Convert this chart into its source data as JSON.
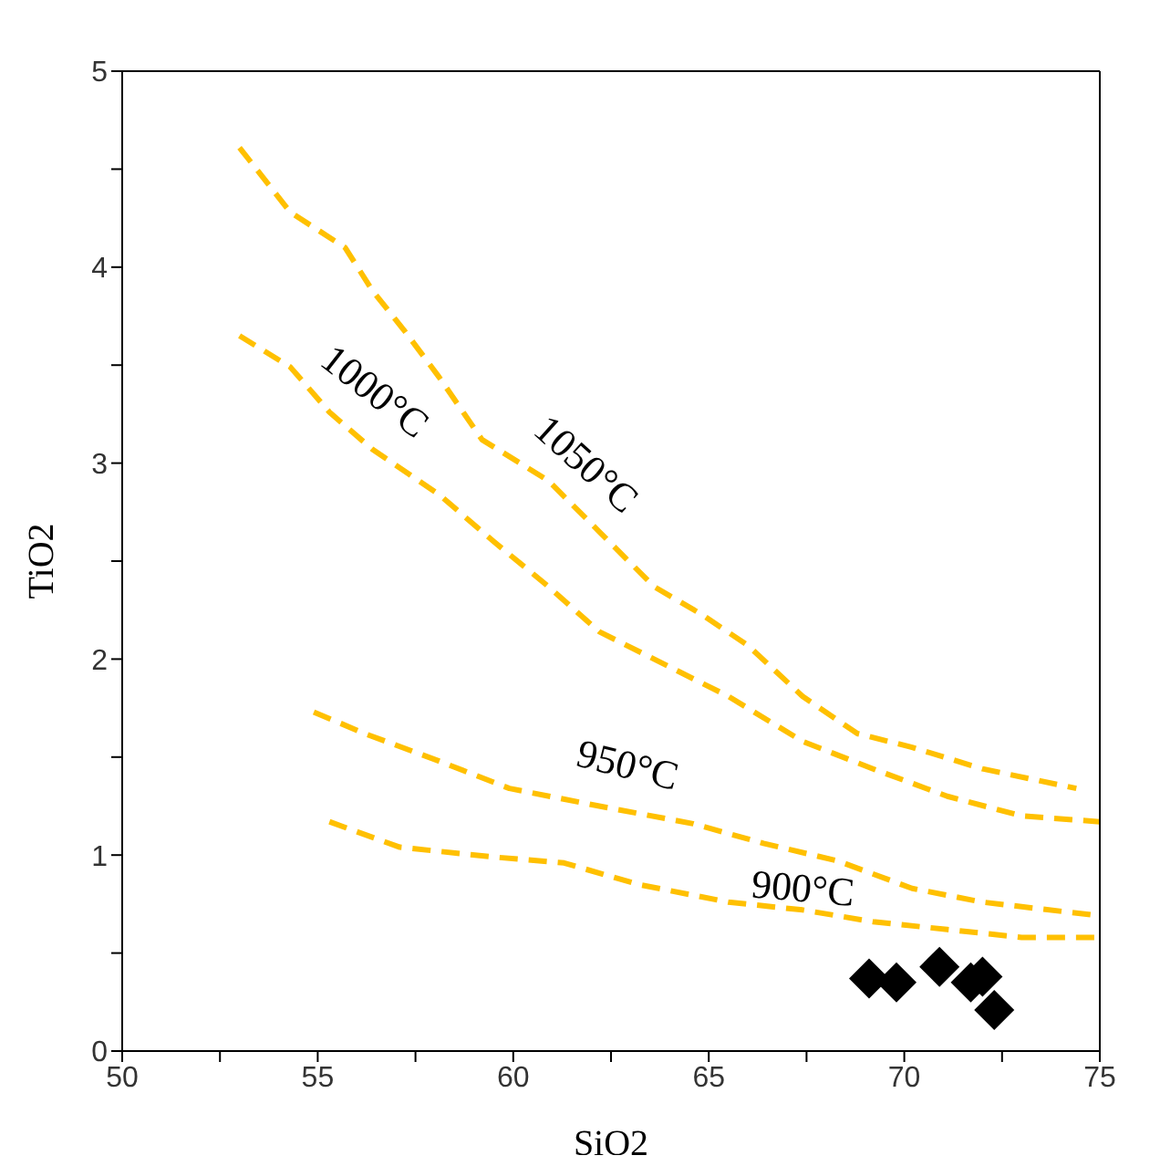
{
  "chart_data": {
    "type": "line",
    "xlabel": "SiO2",
    "ylabel": "TiO2",
    "xlim": [
      50,
      75
    ],
    "ylim": [
      0,
      5
    ],
    "xticks": [
      50,
      {
        "value": 52.5,
        "label": null
      },
      55,
      {
        "value": 57.5,
        "label": null
      },
      60,
      {
        "value": 62.5,
        "label": null
      },
      65,
      {
        "value": 67.5,
        "label": null
      },
      70,
      {
        "value": 72.5,
        "label": null
      },
      75
    ],
    "yticks": [
      0,
      {
        "value": 0.5,
        "label": null
      },
      1,
      {
        "value": 1.5,
        "label": null
      },
      2,
      {
        "value": 2.5,
        "label": null
      },
      3,
      {
        "value": 3.5,
        "label": null
      },
      4,
      {
        "value": 4.5,
        "label": null
      },
      5
    ],
    "grid": false,
    "series": [
      {
        "color": "#ffc000",
        "line_style": "dashed",
        "marker": "none",
        "x": [
          53.0,
          54.3,
          55.7,
          56.4,
          57.2,
          58.1,
          59.2,
          60.9,
          62.2,
          63.6,
          64.8,
          66.0,
          67.4,
          68.8,
          70.2,
          72.0,
          74.4
        ],
        "values": [
          4.61,
          4.28,
          4.1,
          3.88,
          3.68,
          3.44,
          3.12,
          2.91,
          2.65,
          2.37,
          2.23,
          2.07,
          1.81,
          1.62,
          1.55,
          1.44,
          1.34
        ]
      },
      {
        "color": "#ffc000",
        "line_style": "dashed",
        "marker": "none",
        "x": [
          53.0,
          54.3,
          55.3,
          56.4,
          58.1,
          59.5,
          60.9,
          62.2,
          63.6,
          65.5,
          67.4,
          69.2,
          71.1,
          73.0,
          75.0
        ],
        "values": [
          3.65,
          3.49,
          3.26,
          3.07,
          2.84,
          2.6,
          2.37,
          2.14,
          2.0,
          1.81,
          1.58,
          1.44,
          1.3,
          1.2,
          1.17
        ]
      },
      {
        "color": "#ffc000",
        "line_style": "dashed",
        "marker": "none",
        "x": [
          54.9,
          56.2,
          58.1,
          59.9,
          62.2,
          64.6,
          66.4,
          68.3,
          70.2,
          72.0,
          75.0
        ],
        "values": [
          1.73,
          1.62,
          1.48,
          1.34,
          1.25,
          1.16,
          1.06,
          0.97,
          0.83,
          0.76,
          0.69
        ]
      },
      {
        "color": "#ffc000",
        "line_style": "dashed",
        "marker": "none",
        "x": [
          55.3,
          57.1,
          59.5,
          61.3,
          63.2,
          65.5,
          67.4,
          69.2,
          71.1,
          73.0,
          75.0
        ],
        "values": [
          1.17,
          1.04,
          0.99,
          0.96,
          0.85,
          0.76,
          0.72,
          0.66,
          0.62,
          0.58,
          0.58
        ]
      },
      {
        "type": "scatter",
        "color": "#000000",
        "marker": "diamond",
        "x": [
          69.1,
          69.8,
          70.9,
          71.7,
          72.0,
          72.3
        ],
        "values": [
          0.37,
          0.35,
          0.43,
          0.35,
          0.38,
          0.21
        ]
      }
    ],
    "annotations": [
      "1050°C",
      "1000°C",
      "950°C",
      "900°C"
    ]
  }
}
